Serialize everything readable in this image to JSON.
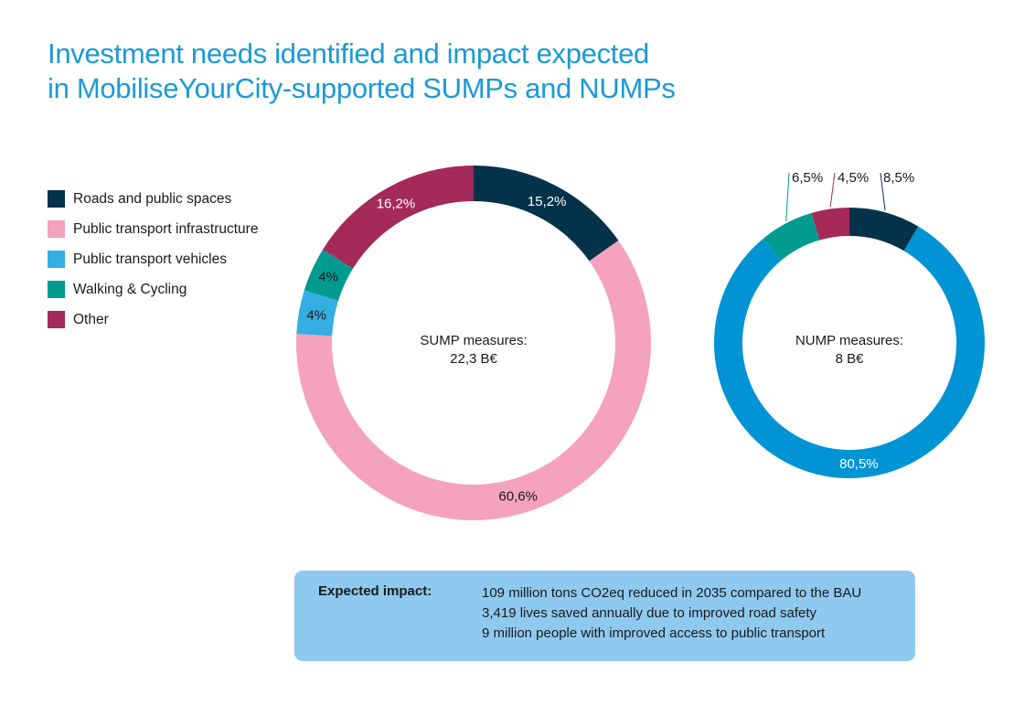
{
  "title_line1": "Investment needs identified and impact expected",
  "title_line2": "in MobiliseYourCity-supported SUMPs and NUMPs",
  "legend": [
    {
      "label": "Roads and public spaces",
      "color": "#04324b"
    },
    {
      "label": "Public transport infrastructure",
      "color": "#f4a2bd"
    },
    {
      "label": "Public transport vehicles",
      "color": "#35aee4"
    },
    {
      "label": "Walking & Cycling",
      "color": "#009b8f"
    },
    {
      "label": "Other",
      "color": "#a42a58"
    }
  ],
  "chart_data": [
    {
      "type": "pie",
      "variant": "donut",
      "center_label_line1": "SUMP measures:",
      "center_label_line2": "22,3 B€",
      "slices": [
        {
          "category": "Roads and public spaces",
          "value": 15.2,
          "label": "15,2%",
          "color": "#04324b",
          "label_color": "#ffffff"
        },
        {
          "category": "Public transport infrastructure",
          "value": 60.6,
          "label": "60,6%",
          "color": "#f4a2bd",
          "label_color": "#1a1a1a"
        },
        {
          "category": "Public transport vehicles",
          "value": 4,
          "label": "4%",
          "color": "#35aee4",
          "label_color": "#1a1a1a"
        },
        {
          "category": "Walking & Cycling",
          "value": 4,
          "label": "4%",
          "color": "#009b8f",
          "label_color": "#1a1a1a"
        },
        {
          "category": "Other",
          "value": 16.2,
          "label": "16,2%",
          "color": "#a42a58",
          "label_color": "#ffffff"
        }
      ]
    },
    {
      "type": "pie",
      "variant": "donut",
      "center_label_line1": "NUMP measures:",
      "center_label_line2": "8 B€",
      "slices": [
        {
          "category": "Roads and public spaces",
          "value": 8.5,
          "label": "8,5%",
          "color": "#04324b",
          "label_color": "#1a1a1a",
          "label_outside": true
        },
        {
          "category": "Public transport vehicles",
          "value": 80.5,
          "label": "80,5%",
          "color": "#0094d4",
          "label_color": "#ffffff"
        },
        {
          "category": "Walking & Cycling",
          "value": 6.5,
          "label": "6,5%",
          "color": "#009b8f",
          "label_color": "#1a1a1a",
          "label_outside": true
        },
        {
          "category": "Other",
          "value": 4.5,
          "label": "4,5%",
          "color": "#a42a58",
          "label_color": "#1a1a1a",
          "label_outside": true
        }
      ]
    }
  ],
  "impact": {
    "heading": "Expected impact:",
    "lines": [
      "109 million tons CO2eq reduced in 2035 compared to the BAU",
      "3,419 lives saved annually due to improved road safety",
      "9 million people with improved access to public transport"
    ]
  }
}
